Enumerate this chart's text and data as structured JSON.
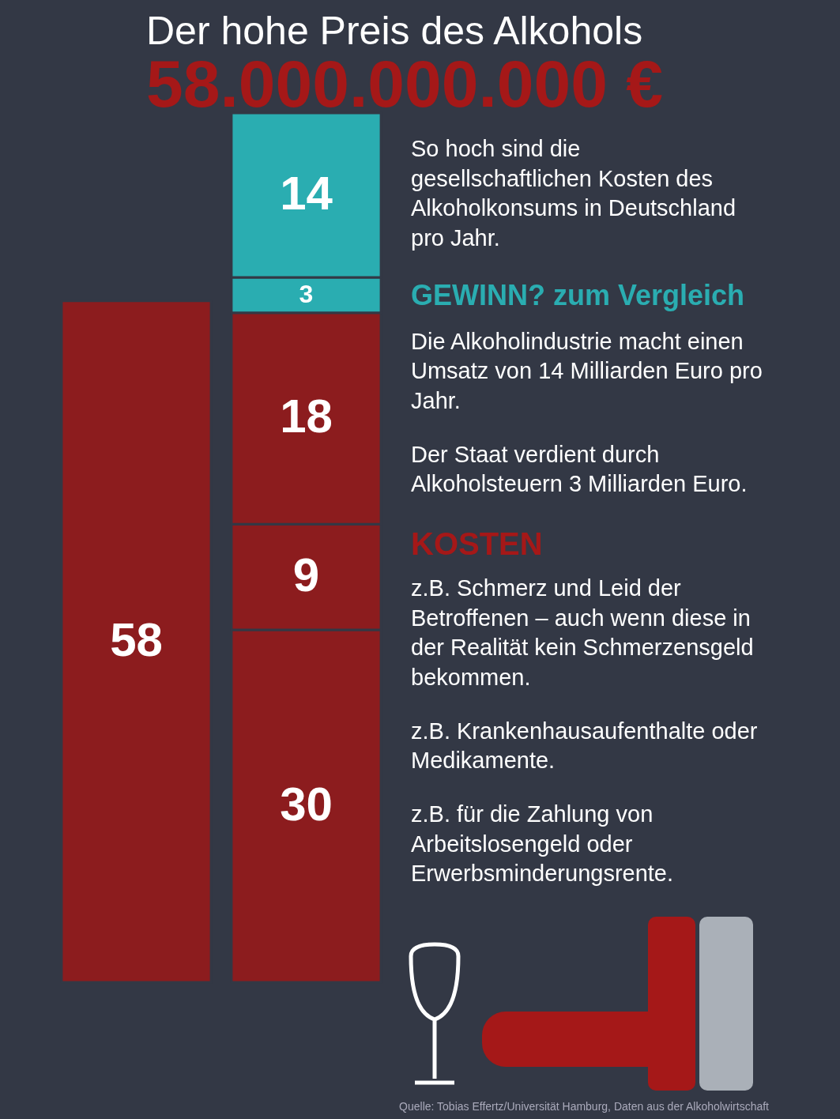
{
  "chart_data": {
    "type": "bar",
    "title": "Der hohe Preis des Alkohols",
    "subtitle": "58.000.000.000 €",
    "categories": [
      null,
      null
    ],
    "stacked": true,
    "data_labels": true,
    "tick_labels": false,
    "series": [
      {
        "color": "#8c1c1e",
        "values": [
          58,
          30
        ]
      },
      {
        "color": "#8c1c1e",
        "values": [
          null,
          9
        ]
      },
      {
        "color": "#8c1c1e",
        "values": [
          null,
          18
        ]
      },
      {
        "color": "#2aadb1",
        "values": [
          null,
          3
        ]
      },
      {
        "color": "#2aadb1",
        "values": [
          null,
          14
        ]
      }
    ],
    "annotations": [
      "So hoch sind die gesellschaftlichen Kosten des Alkoholkonsums in Deutschland pro Jahr.",
      "GEWINN? zum Vergleich",
      "Die Alkoholindustrie macht einen Umsatz von 14 Milliarden Euro pro Jahr.",
      "Der Staat verdient durch Alkoholsteuern 3 Milliarden Euro.",
      "KOSTEN",
      "z.B. Schmerz und Leid der Betroffenen – auch wenn diese in der Realität kein Schmerzensgeld bekommen.",
      "z.B. Krankenhausaufenthalte oder Medikamente.",
      "z.B. für die Zahlung von Arbeitslosengeld oder Erwerbsminderungsrente.",
      "Quelle: Tobias Effertz/Universität Hamburg, Daten aus der Alkoholwirtschaft"
    ]
  }
}
